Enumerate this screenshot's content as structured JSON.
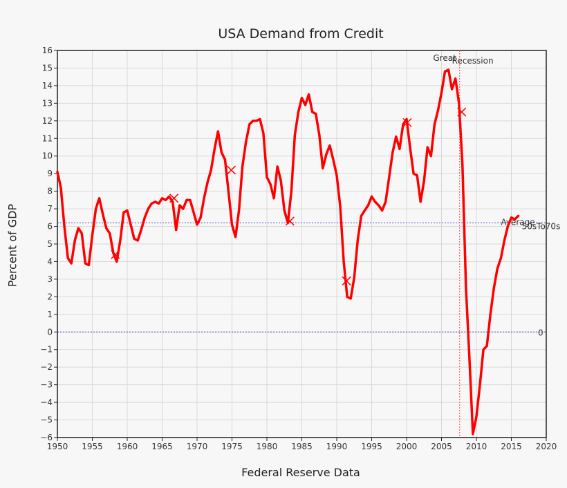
{
  "chart_data": {
    "type": "line",
    "title": "USA Demand from Credit",
    "xlabel": "Federal Reserve Data",
    "ylabel": "Percent of GDP",
    "xlim": [
      1950,
      2020
    ],
    "ylim": [
      -6,
      16
    ],
    "xticks": [
      "1950",
      "1955",
      "1960",
      "1965",
      "1970",
      "1975",
      "1980",
      "1985",
      "1990",
      "1995",
      "2000",
      "2005",
      "2010",
      "2015",
      "2020"
    ],
    "yticks": [
      "16",
      "15",
      "14",
      "13",
      "12",
      "11",
      "10",
      "9",
      "8",
      "7",
      "6",
      "5",
      "4",
      "3",
      "2",
      "1",
      "0",
      "−1",
      "−2",
      "−3",
      "−4",
      "−5",
      "−6"
    ],
    "grid": true,
    "colors": {
      "line": "#ff0000",
      "reference": "#4444cc",
      "recession": "#ff4444"
    },
    "series": [
      {
        "x": [
          1950,
          1950.5,
          1951,
          1951.5,
          1952,
          1952.5,
          1953,
          1953.5,
          1954,
          1954.5,
          1955,
          1955.5,
          1956,
          1956.5,
          1957,
          1957.5,
          1958,
          1958.5,
          1959,
          1959.5,
          1960,
          1960.5,
          1961,
          1961.5,
          1962,
          1962.5,
          1963,
          1963.5,
          1964,
          1964.5,
          1965,
          1965.5,
          1966,
          1966.5,
          1967,
          1967.5,
          1968,
          1968.5,
          1969,
          1969.5,
          1970,
          1970.5,
          1971,
          1971.5,
          1972,
          1972.5,
          1973,
          1973.5,
          1974,
          1974.5,
          1975,
          1975.5,
          1976,
          1976.5,
          1977,
          1977.5,
          1978,
          1978.5,
          1979,
          1979.5,
          1980,
          1980.5,
          1981,
          1981.5,
          1982,
          1982.5,
          1983,
          1983.5,
          1984,
          1984.5,
          1985,
          1985.5,
          1986,
          1986.5,
          1987,
          1987.5,
          1988,
          1988.5,
          1989,
          1989.5,
          1990,
          1990.5,
          1991,
          1991.5,
          1992,
          1992.5,
          1993,
          1993.5,
          1994,
          1994.5,
          1995,
          1995.5,
          1996,
          1996.5,
          1997,
          1997.5,
          1998,
          1998.5,
          1999,
          1999.5,
          2000,
          2000.5,
          2001,
          2001.5,
          2002,
          2002.5,
          2003,
          2003.5,
          2004,
          2004.5,
          2005,
          2005.5,
          2006,
          2006.5,
          2007,
          2007.5,
          2008,
          2008.5,
          2009,
          2009.5,
          2010,
          2010.5,
          2011,
          2011.5,
          2012,
          2012.5,
          2013,
          2013.5,
          2014,
          2014.5,
          2015,
          2015.5,
          2016
        ],
        "y": [
          9.1,
          8.2,
          6.0,
          4.2,
          3.9,
          5.2,
          5.9,
          5.6,
          3.9,
          3.8,
          5.5,
          7.0,
          7.6,
          6.7,
          5.9,
          5.6,
          4.5,
          4.0,
          5.2,
          6.8,
          6.9,
          6.1,
          5.3,
          5.2,
          5.8,
          6.5,
          7.0,
          7.3,
          7.4,
          7.3,
          7.6,
          7.5,
          7.7,
          7.4,
          5.8,
          7.2,
          7.0,
          7.5,
          7.5,
          6.8,
          6.1,
          6.5,
          7.6,
          8.5,
          9.2,
          10.4,
          11.4,
          10.2,
          9.8,
          8.0,
          6.1,
          5.4,
          6.9,
          9.4,
          10.8,
          11.8,
          12.0,
          12.0,
          12.1,
          11.3,
          8.8,
          8.4,
          7.6,
          9.4,
          8.6,
          6.9,
          6.2,
          8.0,
          11.2,
          12.5,
          13.3,
          12.9,
          13.5,
          12.5,
          12.4,
          11.2,
          9.3,
          10.1,
          10.6,
          9.8,
          8.9,
          7.1,
          4.0,
          2.0,
          1.9,
          3.1,
          5.2,
          6.6,
          6.9,
          7.2,
          7.7,
          7.4,
          7.2,
          6.9,
          7.4,
          8.8,
          10.2,
          11.1,
          10.4,
          11.8,
          12.1,
          10.5,
          9.0,
          8.9,
          7.4,
          8.6,
          10.5,
          10.0,
          11.8,
          12.6,
          13.6,
          14.8,
          14.9,
          13.8,
          14.4,
          13.0,
          9.5,
          2.5,
          -1.5,
          -5.8,
          -4.8,
          -3.0,
          -1.0,
          -0.8,
          1.0,
          2.5,
          3.6,
          4.2,
          5.2,
          6.0,
          6.5,
          6.4,
          6.6
        ]
      }
    ],
    "markers": [
      {
        "x": 1958.3,
        "y": 4.4
      },
      {
        "x": 1966.7,
        "y": 7.6
      },
      {
        "x": 1974.9,
        "y": 9.2
      },
      {
        "x": 1983.3,
        "y": 6.3
      },
      {
        "x": 1991.4,
        "y": 2.9
      },
      {
        "x": 2000.1,
        "y": 11.9
      },
      {
        "x": 2007.9,
        "y": 12.5
      }
    ],
    "reference_lines": [
      {
        "y": 6.2,
        "label": "Average",
        "sublabel": "50sTo70s"
      },
      {
        "y": 0,
        "label": "0"
      }
    ],
    "vertical_line": {
      "x": 2007.6,
      "label_top": "Great",
      "label_sub": "Recession"
    }
  }
}
